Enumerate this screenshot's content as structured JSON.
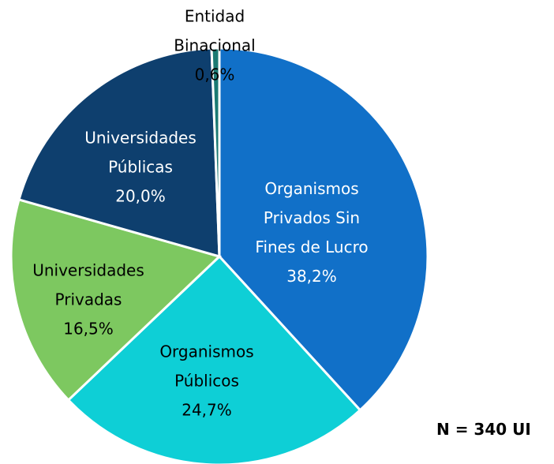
{
  "chart_data": {
    "type": "pie",
    "categories": [
      "Organismos Privados Sin Fines de Lucro",
      "Organismos Públicos",
      "Universidades Privadas",
      "Universidades Públicas",
      "Entidad Binacional"
    ],
    "values": [
      38.2,
      24.7,
      16.5,
      20.0,
      0.6
    ],
    "value_labels": [
      "38,2%",
      "24,7%",
      "16,5%",
      "20,0%",
      "0,6%"
    ],
    "colors": [
      "#1170c8",
      "#0ecfd6",
      "#7dc860",
      "#0e3f6e",
      "#1b7a73"
    ],
    "note": "N = 340 UI"
  }
}
